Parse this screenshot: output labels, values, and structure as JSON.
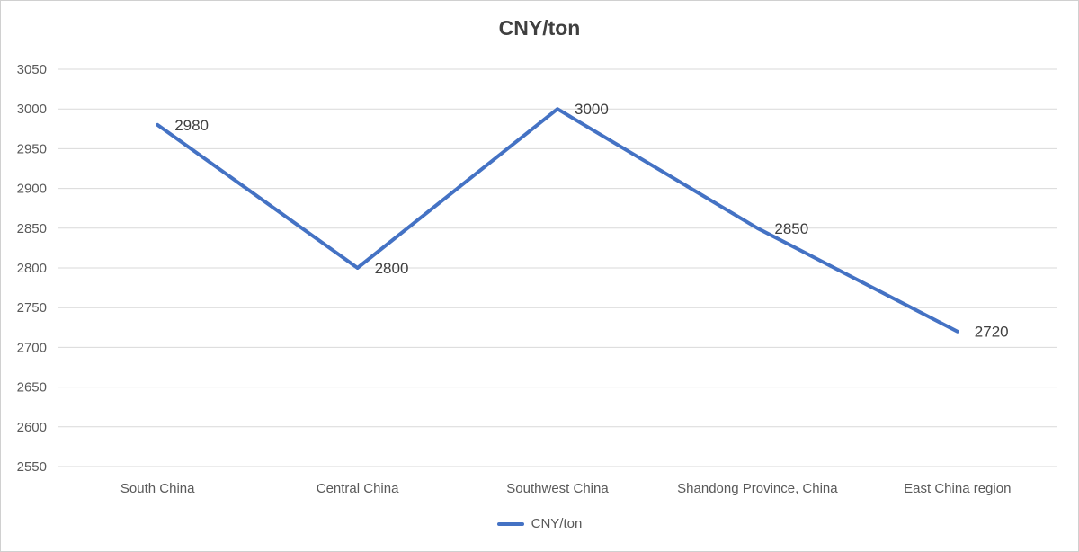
{
  "chart_data": {
    "type": "line",
    "title": "CNY/ton",
    "categories": [
      "South China",
      "Central China",
      "Southwest China",
      "Shandong Province, China",
      "East China region"
    ],
    "series": [
      {
        "name": "CNY/ton",
        "values": [
          2980,
          2800,
          3000,
          2850,
          2720
        ],
        "color": "#4472c4"
      }
    ],
    "data_labels": [
      "2980",
      "2800",
      "3000",
      "2850",
      "2720"
    ],
    "xlabel": "",
    "ylabel": "",
    "ylim": [
      2550,
      3050
    ],
    "yticks": [
      3050,
      3000,
      2950,
      2900,
      2850,
      2800,
      2750,
      2700,
      2650,
      2600,
      2550
    ],
    "ytick_labels": [
      "3050",
      "3000",
      "2950",
      "2900",
      "2850",
      "2800",
      "2750",
      "2700",
      "2650",
      "2600",
      "2550"
    ],
    "grid": true,
    "legend_position": "bottom"
  },
  "colors": {
    "series": "#4472c4",
    "grid": "#d9d9d9",
    "text": "#595959",
    "title": "#404040"
  }
}
